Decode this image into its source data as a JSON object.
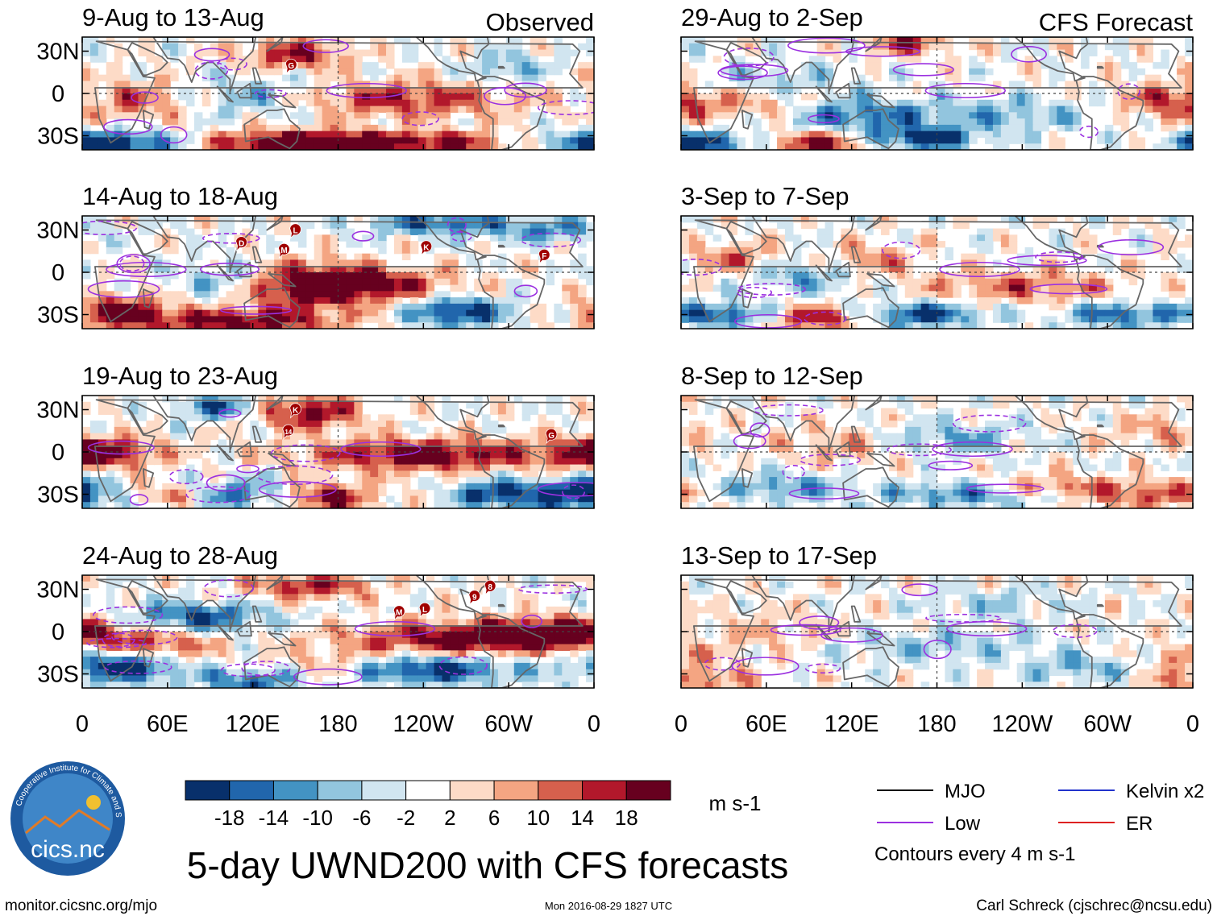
{
  "chart_data": {
    "type": "heatmap",
    "title": "5-day UWND200 with CFS forecasts",
    "variable": "200-hPa zonal wind anomaly",
    "units_label": "m s-1",
    "columns": [
      {
        "header": "Observed",
        "panels": [
          {
            "title": "9-Aug to 13-Aug",
            "storms": [
              {
                "label": "G",
                "lon": 147,
                "lat": 20
              }
            ]
          },
          {
            "title": "14-Aug to 18-Aug",
            "storms": [
              {
                "label": "D",
                "lon": 112,
                "lat": 21
              },
              {
                "label": "L",
                "lon": 150,
                "lat": 30
              },
              {
                "label": "M",
                "lon": 142,
                "lat": 16
              },
              {
                "label": "K",
                "lon": 242,
                "lat": 18
              },
              {
                "label": "F",
                "lon": 325,
                "lat": 12
              }
            ]
          },
          {
            "title": "19-Aug to 23-Aug",
            "storms": [
              {
                "label": "K",
                "lon": 150,
                "lat": 30
              },
              {
                "label": "14",
                "lon": 145,
                "lat": 15
              },
              {
                "label": "G",
                "lon": 330,
                "lat": 12
              }
            ]
          },
          {
            "title": "24-Aug to 28-Aug",
            "storms": [
              {
                "label": "M",
                "lon": 223,
                "lat": 14
              },
              {
                "label": "L",
                "lon": 241,
                "lat": 16
              },
              {
                "label": "9",
                "lon": 276,
                "lat": 25
              },
              {
                "label": "8",
                "lon": 287,
                "lat": 32
              }
            ]
          }
        ]
      },
      {
        "header": "CFS Forecast",
        "panels": [
          {
            "title": "29-Aug to 2-Sep",
            "storms": []
          },
          {
            "title": "3-Sep to 7-Sep",
            "storms": []
          },
          {
            "title": "8-Sep to 12-Sep",
            "storms": []
          },
          {
            "title": "13-Sep to 17-Sep",
            "storms": []
          }
        ]
      }
    ],
    "lat_range": [
      -40,
      40
    ],
    "lon_range": [
      0,
      360
    ],
    "y_ticks": [
      {
        "lat": 30,
        "label": "30N"
      },
      {
        "lat": 0,
        "label": "0"
      },
      {
        "lat": -30,
        "label": "30S"
      }
    ],
    "x_ticks": [
      {
        "lon": 0,
        "label": "0"
      },
      {
        "lon": 60,
        "label": "60E"
      },
      {
        "lon": 120,
        "label": "120E"
      },
      {
        "lon": 180,
        "label": "180"
      },
      {
        "lon": 240,
        "label": "120W"
      },
      {
        "lon": 300,
        "label": "60W"
      },
      {
        "lon": 360,
        "label": "0"
      }
    ],
    "colorbar": {
      "ticks": [
        "-18",
        "-14",
        "-10",
        "-6",
        "-2",
        "2",
        "6",
        "10",
        "14",
        "18"
      ],
      "colors": [
        "#08306b",
        "#2166ac",
        "#4393c3",
        "#92c5de",
        "#d1e5f0",
        "#ffffff",
        "#fddbc7",
        "#f4a582",
        "#d6604d",
        "#b2182b",
        "#67001f"
      ]
    },
    "legend": {
      "items": [
        {
          "label": "MJO",
          "color": "#000000"
        },
        {
          "label": "Kelvin x2",
          "color": "#2233cc"
        },
        {
          "label": "Low",
          "color": "#9b30e0"
        },
        {
          "label": "ER",
          "color": "#dd2222"
        }
      ],
      "note": "Contours every 4 m s-1"
    }
  },
  "footer": {
    "url": "monitor.cicsnc.org/mjo",
    "timestamp": "Mon 2016-08-29 1827 UTC",
    "author": "Carl Schreck (cjschrec@ncsu.edu)"
  },
  "logo": {
    "name": "cics.nc",
    "ring_text": "Cooperative Institute for Climate and Satellites"
  }
}
